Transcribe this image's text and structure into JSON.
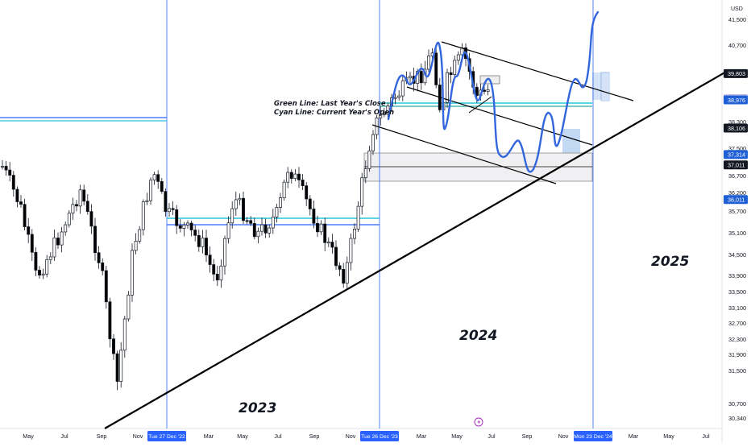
{
  "chart_data": {
    "type": "candlestick",
    "currency": "USD",
    "y_ticks": [
      41500,
      40700,
      39100,
      38300,
      37500,
      36700,
      36200,
      35700,
      35100,
      34500,
      33900,
      33500,
      33100,
      32700,
      32300,
      31900,
      31500,
      30700,
      30340
    ],
    "price_badges": [
      {
        "value": "39,803",
        "color": "#131722"
      },
      {
        "value": "39,009",
        "color": "#cbb8e8"
      },
      {
        "value": "38,976",
        "color": "#1f5fd6"
      },
      {
        "value": "38,106",
        "color": "#131722"
      },
      {
        "value": "37,314",
        "color": "#1f5fd6"
      },
      {
        "value": "37,011",
        "color": "#131722"
      },
      {
        "value": "36,011",
        "color": "#1f5fd6"
      }
    ],
    "x_ticks": [
      {
        "label": "May",
        "x": 35
      },
      {
        "label": "Jul",
        "x": 80
      },
      {
        "label": "Sep",
        "x": 126
      },
      {
        "label": "Nov",
        "x": 171
      },
      {
        "label": "Mar",
        "x": 259
      },
      {
        "label": "May",
        "x": 301
      },
      {
        "label": "Jul",
        "x": 345
      },
      {
        "label": "Sep",
        "x": 390
      },
      {
        "label": "Nov",
        "x": 435
      },
      {
        "label": "Mar",
        "x": 523
      },
      {
        "label": "May",
        "x": 567
      },
      {
        "label": "Jul",
        "x": 610
      },
      {
        "label": "Sep",
        "x": 654
      },
      {
        "label": "Nov",
        "x": 699
      },
      {
        "label": "Mar",
        "x": 786
      },
      {
        "label": "May",
        "x": 830
      },
      {
        "label": "Jul",
        "x": 876
      }
    ],
    "date_markers": [
      {
        "label": "Tue 27 Dec '22"
      },
      {
        "label": "Tue 26 Dec '23"
      },
      {
        "label": "Mon 23 Dec '24"
      }
    ],
    "annotations": {
      "legend_line1": "Green Line: Last Year's Close",
      "legend_line2": "Cyan Line: Current Year's Open",
      "year_2023": "2023",
      "year_2024": "2024",
      "year_2025": "2025"
    },
    "accent_colors": {
      "up": "#131722",
      "down": "#000000",
      "marker": "#2962ff",
      "cyan": "#26c6da",
      "green": "#26a69a",
      "projection": "#3366dd"
    }
  }
}
